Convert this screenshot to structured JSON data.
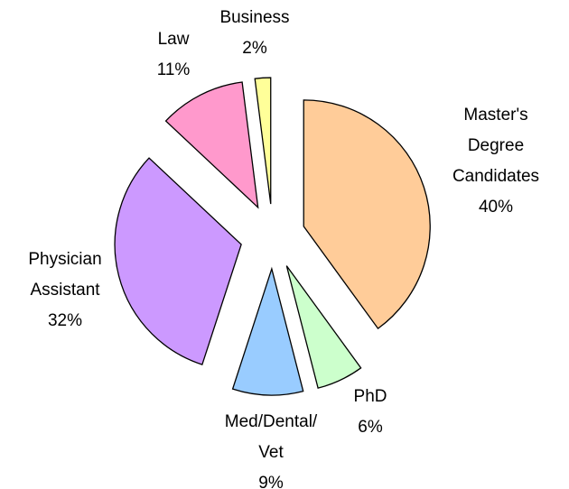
{
  "chart_data": {
    "type": "pie",
    "categories": [
      "Master's\nDegree\nCandidates",
      "PhD",
      "Med/Dental/\nVet",
      "Physician\nAssistant",
      "Law",
      "Business"
    ],
    "values": [
      40,
      6,
      9,
      32,
      11,
      2
    ],
    "value_labels": [
      "40%",
      "6%",
      "9%",
      "32%",
      "11%",
      "2%"
    ],
    "colors": [
      "#ffcc99",
      "#ccffcc",
      "#99ccff",
      "#cc99ff",
      "#ff99cc",
      "#ffff99"
    ],
    "exploded": true
  }
}
